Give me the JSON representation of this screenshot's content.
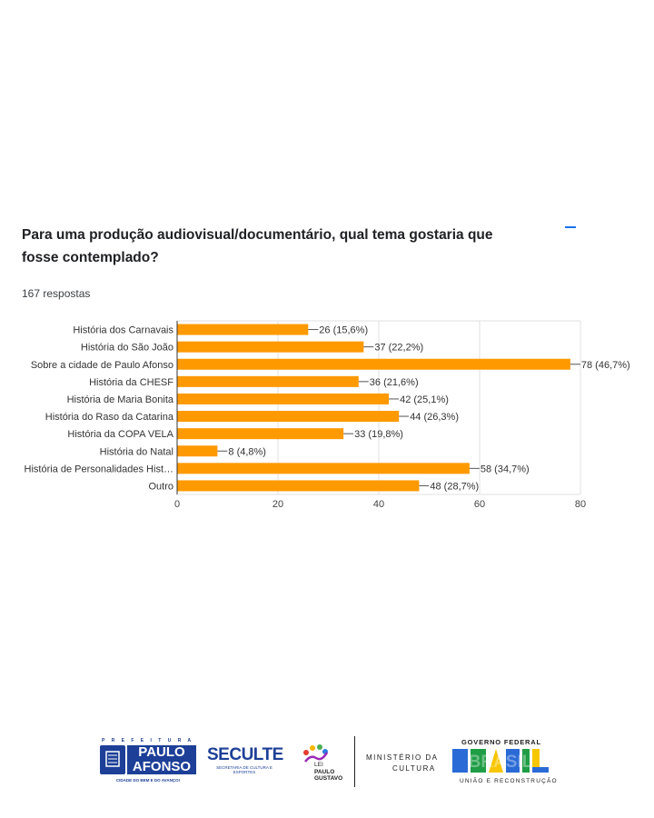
{
  "question": {
    "title": "Para uma produção audiovisual/documentário, qual tema gostaria que fosse contemplado?",
    "responses": "167 respostas"
  },
  "colors": {
    "bar": "#ff9900",
    "accent": "#1a73e8",
    "grid": "#e0e0e0"
  },
  "chart_data": {
    "type": "bar",
    "orientation": "horizontal",
    "categories": [
      "História dos Carnavais",
      "História do São João",
      "Sobre a cidade de Paulo Afonso",
      "História da CHESF",
      "História de Maria Bonita",
      "História do Raso da Catarina",
      "História da COPA VELA",
      "História do Natal",
      "História de Personalidades Hist…",
      "Outro"
    ],
    "values": [
      26,
      37,
      78,
      36,
      42,
      44,
      33,
      8,
      58,
      48
    ],
    "data_labels": [
      "26 (15,6%)",
      "37 (22,2%)",
      "78 (46,7%)",
      "36 (21,6%)",
      "42 (25,1%)",
      "44 (26,3%)",
      "33 (19,8%)",
      "8 (4,8%)",
      "58 (34,7%)",
      "48 (28,7%)"
    ],
    "xlim": [
      0,
      80
    ],
    "xticks": [
      "0",
      "20",
      "40",
      "60",
      "80"
    ],
    "grid": true
  },
  "logos": {
    "prefeitura_top": "P R E F E I T U R A",
    "paulo": "PAULO",
    "afonso": "AFONSO",
    "cidade": "CIDADE DO BEM E DO AVANÇO!",
    "seculte": "SECULTE",
    "seculte_sub": "SECRETARIA DE CULTURA E ESPORTES",
    "lei": "LEI",
    "paulo_gustavo": "PAULO GUSTAVO",
    "ministerio_line1": "MINISTÉRIO DA",
    "ministerio_line2": "CULTURA",
    "governo_federal": "GOVERNO FEDERAL",
    "brasil": "BRASIL",
    "uniao": "UNIÃO E RECONSTRUÇÃO"
  }
}
